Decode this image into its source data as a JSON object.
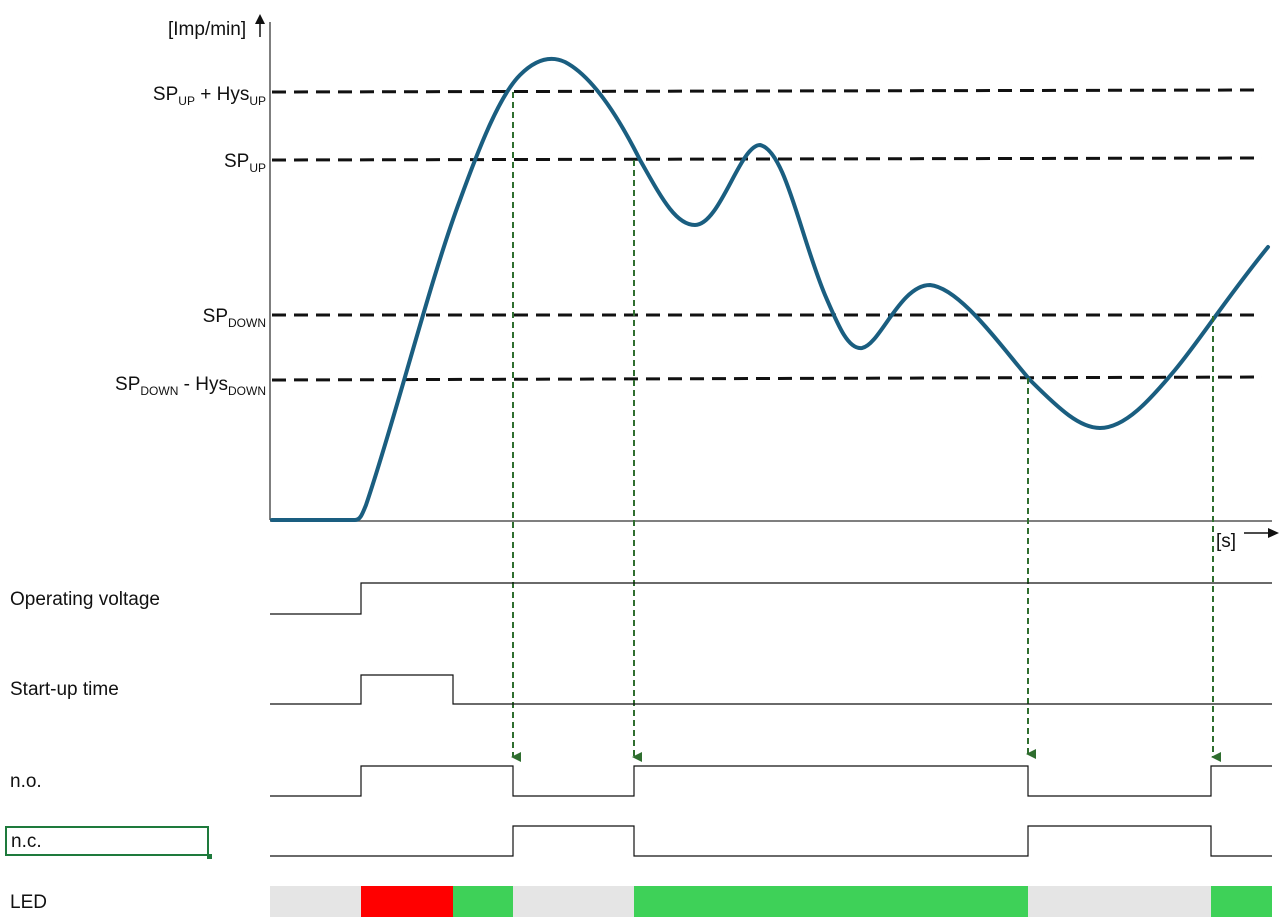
{
  "axes": {
    "y_unit": "[Imp/min]",
    "x_unit": "[s]"
  },
  "thresholds": [
    {
      "id": "sp_up_hys",
      "base": "SP",
      "sub": "UP",
      "mid": " + Hys",
      "sub2": "UP"
    },
    {
      "id": "sp_up",
      "base": "SP",
      "sub": "UP",
      "mid": "",
      "sub2": ""
    },
    {
      "id": "sp_down",
      "base": "SP",
      "sub": "DOWN",
      "mid": "",
      "sub2": ""
    },
    {
      "id": "sp_down_hys",
      "base": "SP",
      "sub": "DOWN",
      "mid": " - Hys",
      "sub2": "DOWN"
    }
  ],
  "signals": {
    "operating_voltage": "Operating voltage",
    "startup_time": "Start-up time",
    "no": "n.o.",
    "nc": "n.c.",
    "led": "LED"
  },
  "colors": {
    "curve": "#1a5e80",
    "threshold_line": "#111111",
    "drop_arrow": "#2f6e2f",
    "led_off": "#e5e5e5",
    "led_red": "#ff0000",
    "led_green": "#3ed158",
    "selection": "#1e7a3c"
  },
  "led_states": [
    "off",
    "red",
    "green",
    "off",
    "green",
    "off",
    "green"
  ]
}
